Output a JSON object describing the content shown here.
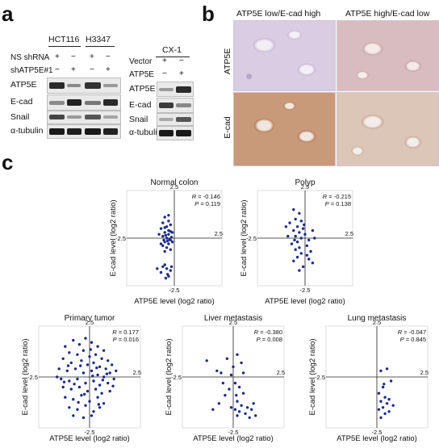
{
  "panels": {
    "a": "a",
    "b": "b",
    "c": "c"
  },
  "blot_a": {
    "cell_lines_left": [
      "HCT116",
      "H3347"
    ],
    "cell_line_right": "CX-1",
    "left_conditions": [
      {
        "label": "NS shRNA",
        "marks": [
          "+",
          "−",
          "+",
          "−"
        ]
      },
      {
        "label": "shATP5E#1",
        "marks": [
          "−",
          "+",
          "−",
          "+"
        ]
      }
    ],
    "right_conditions": [
      {
        "label": "Vector",
        "marks": [
          "+",
          "−"
        ]
      },
      {
        "label": "ATP5E",
        "marks": [
          "−",
          "+"
        ]
      }
    ],
    "rows": [
      "ATP5E",
      "E-cad",
      "Snail",
      "α-tubulin"
    ]
  },
  "ihc_b": {
    "col_titles": [
      "ATP5E low/E-cad high",
      "ATP5E high/E-cad low"
    ],
    "row_labels": [
      "ATP5E",
      "E-cad"
    ]
  },
  "chart_data": [
    {
      "type": "scatter",
      "title": "Normal colon",
      "xlabel": "ATP5E level (log2 ratio)",
      "ylabel": "E-cad level (log2 ratio)",
      "xlim": [
        -2.5,
        2.5
      ],
      "ylim": [
        -2.5,
        2.5
      ],
      "ticks": [
        "2.5",
        "-2.5",
        "2.5",
        "-2.5"
      ],
      "stats": {
        "R": "-0.146",
        "P": "0.119"
      },
      "points": [
        [
          -0.5,
          1.1
        ],
        [
          -0.3,
          1.2
        ],
        [
          -0.6,
          0.8
        ],
        [
          -0.4,
          0.6
        ],
        [
          -0.2,
          0.7
        ],
        [
          -0.7,
          0.5
        ],
        [
          -0.5,
          0.3
        ],
        [
          -0.3,
          0.2
        ],
        [
          -0.6,
          0.1
        ],
        [
          -0.4,
          0.0
        ],
        [
          -0.2,
          -0.1
        ],
        [
          -0.5,
          -0.2
        ],
        [
          -0.3,
          -0.3
        ],
        [
          -0.1,
          -0.2
        ],
        [
          -0.6,
          -0.4
        ],
        [
          -0.4,
          -0.5
        ],
        [
          -0.2,
          -0.6
        ],
        [
          -0.5,
          -0.7
        ],
        [
          -0.3,
          0.4
        ],
        [
          -0.8,
          0.2
        ],
        [
          -0.1,
          0.3
        ],
        [
          -0.45,
          0.15
        ],
        [
          -0.25,
          -0.05
        ],
        [
          -0.55,
          -0.1
        ],
        [
          -0.35,
          -0.15
        ],
        [
          -0.15,
          0.05
        ],
        [
          -0.7,
          -0.3
        ],
        [
          -0.6,
          -1.5
        ],
        [
          -0.4,
          -1.6
        ],
        [
          -0.2,
          -1.7
        ],
        [
          -0.5,
          -1.4
        ],
        [
          -0.3,
          -2.0
        ],
        [
          -0.7,
          -1.8
        ],
        [
          -0.35,
          -1.9
        ],
        [
          -0.15,
          -1.5
        ],
        [
          -0.45,
          -2.1
        ],
        [
          -0.9,
          -1.6
        ],
        [
          -0.3,
          0.9
        ],
        [
          -0.5,
          0.55
        ],
        [
          -0.2,
          0.35
        ]
      ]
    },
    {
      "type": "scatter",
      "title": "Polyp",
      "xlabel": "ATP5E level (log2 ratio)",
      "ylabel": "E-cad level (log2 ratio)",
      "xlim": [
        -2.5,
        2.5
      ],
      "ylim": [
        -2.5,
        2.5
      ],
      "ticks": [
        "2.5",
        "-2.5",
        "2.5",
        "-2.5"
      ],
      "stats": {
        "R": "-0.215",
        "P": "0.138"
      },
      "points": [
        [
          -0.6,
          1.5
        ],
        [
          -0.3,
          1.3
        ],
        [
          -0.5,
          1.0
        ],
        [
          -0.2,
          0.9
        ],
        [
          -0.8,
          0.8
        ],
        [
          -0.4,
          0.6
        ],
        [
          -0.1,
          0.5
        ],
        [
          -0.6,
          0.4
        ],
        [
          -0.3,
          0.3
        ],
        [
          0.0,
          0.2
        ],
        [
          -0.5,
          0.1
        ],
        [
          -0.2,
          0.0
        ],
        [
          0.2,
          -0.1
        ],
        [
          -0.4,
          -0.2
        ],
        [
          -0.7,
          -0.3
        ],
        [
          0.1,
          -0.4
        ],
        [
          -0.3,
          -0.5
        ],
        [
          -0.5,
          -0.6
        ],
        [
          0.3,
          -0.7
        ],
        [
          -0.2,
          -0.8
        ],
        [
          -0.4,
          -1.0
        ],
        [
          -0.6,
          -1.2
        ],
        [
          0.2,
          -1.1
        ],
        [
          -0.1,
          -1.5
        ],
        [
          -0.3,
          -1.7
        ],
        [
          0.4,
          -1.3
        ],
        [
          0.1,
          -0.9
        ],
        [
          -0.9,
          0.1
        ],
        [
          -1.0,
          0.6
        ],
        [
          0.4,
          0.4
        ],
        [
          0.5,
          0.0
        ],
        [
          -0.05,
          0.7
        ],
        [
          -0.55,
          -0.1
        ]
      ]
    },
    {
      "type": "scatter",
      "title": "Primary tumor",
      "xlabel": "ATP5E level (log2 ratio)",
      "ylabel": "E-cad level (log2 ratio)",
      "xlim": [
        -2.5,
        2.5
      ],
      "ylim": [
        -2.5,
        2.5
      ],
      "ticks": [
        "2.5",
        "-2.5",
        "2.5",
        "-2.5"
      ],
      "stats": {
        "R": "0.177",
        "P": "0.016"
      },
      "points": [
        [
          -1.2,
          1.5
        ],
        [
          -0.8,
          1.8
        ],
        [
          -0.5,
          1.6
        ],
        [
          -0.2,
          1.9
        ],
        [
          0.1,
          1.7
        ],
        [
          0.4,
          1.5
        ],
        [
          0.7,
          1.3
        ],
        [
          -1.0,
          1.2
        ],
        [
          -0.6,
          1.1
        ],
        [
          -0.3,
          1.3
        ],
        [
          0.0,
          1.0
        ],
        [
          0.3,
          1.1
        ],
        [
          0.6,
          0.9
        ],
        [
          0.9,
          0.8
        ],
        [
          -1.3,
          0.9
        ],
        [
          -0.9,
          0.7
        ],
        [
          -0.4,
          0.8
        ],
        [
          -0.1,
          0.6
        ],
        [
          0.2,
          0.7
        ],
        [
          0.5,
          0.5
        ],
        [
          0.8,
          0.4
        ],
        [
          1.1,
          0.6
        ],
        [
          -1.5,
          0.4
        ],
        [
          -1.1,
          0.3
        ],
        [
          -0.7,
          0.4
        ],
        [
          -0.3,
          0.2
        ],
        [
          0.1,
          0.3
        ],
        [
          0.4,
          0.1
        ],
        [
          0.7,
          0.0
        ],
        [
          1.0,
          0.2
        ],
        [
          -1.4,
          -0.1
        ],
        [
          -1.0,
          -0.2
        ],
        [
          -0.6,
          -0.1
        ],
        [
          -0.2,
          -0.3
        ],
        [
          0.2,
          -0.2
        ],
        [
          0.5,
          -0.4
        ],
        [
          0.9,
          -0.3
        ],
        [
          1.2,
          -0.1
        ],
        [
          -1.3,
          -0.5
        ],
        [
          -0.9,
          -0.6
        ],
        [
          -0.5,
          -0.5
        ],
        [
          -0.1,
          -0.7
        ],
        [
          0.3,
          -0.6
        ],
        [
          0.6,
          -0.8
        ],
        [
          1.0,
          -0.7
        ],
        [
          -1.2,
          -1.0
        ],
        [
          -0.8,
          -1.1
        ],
        [
          -0.4,
          -0.9
        ],
        [
          0.0,
          -1.2
        ],
        [
          0.4,
          -1.0
        ],
        [
          0.7,
          -1.3
        ],
        [
          -1.0,
          -1.5
        ],
        [
          -0.6,
          -1.6
        ],
        [
          -0.2,
          -1.4
        ],
        [
          0.2,
          -1.7
        ],
        [
          0.5,
          -1.5
        ],
        [
          -0.8,
          -1.9
        ],
        [
          -0.3,
          -2.0
        ],
        [
          0.1,
          -1.9
        ],
        [
          -1.6,
          0.0
        ],
        [
          1.3,
          0.3
        ],
        [
          -0.45,
          0.55
        ],
        [
          0.15,
          0.05
        ],
        [
          0.35,
          0.45
        ],
        [
          -0.75,
          -0.35
        ],
        [
          0.65,
          -0.15
        ],
        [
          -0.25,
          -0.85
        ],
        [
          0.85,
          0.15
        ],
        [
          -1.05,
          0.55
        ],
        [
          0.05,
          1.35
        ],
        [
          -0.55,
          -1.25
        ],
        [
          0.45,
          -1.35
        ],
        [
          -1.25,
          -0.25
        ],
        [
          1.15,
          -0.45
        ]
      ]
    },
    {
      "type": "scatter",
      "title": "Liver metastasis",
      "xlabel": "ATP5E level (log2 ratio)",
      "ylabel": "E-cad level (log2 ratio)",
      "xlim": [
        -2.5,
        2.5
      ],
      "ylim": [
        -2.5,
        2.5
      ],
      "ticks": [
        "2.5",
        "-2.5",
        "2.5",
        "-2.5"
      ],
      "stats": {
        "R": "-0.380",
        "P": "0.008"
      },
      "points": [
        [
          -1.3,
          0.8
        ],
        [
          -0.8,
          0.3
        ],
        [
          -0.6,
          0.2
        ],
        [
          -0.3,
          0.9
        ],
        [
          0.2,
          1.1
        ],
        [
          0.4,
          0.7
        ],
        [
          -0.1,
          0.1
        ],
        [
          0.1,
          -0.3
        ],
        [
          0.3,
          -0.5
        ],
        [
          -0.2,
          -0.6
        ],
        [
          0.5,
          -0.8
        ],
        [
          0.2,
          -1.2
        ],
        [
          0.4,
          -1.4
        ],
        [
          0.7,
          -1.5
        ],
        [
          0.1,
          -1.6
        ],
        [
          0.3,
          -1.7
        ],
        [
          0.6,
          -1.8
        ],
        [
          0.9,
          -1.6
        ],
        [
          0.8,
          -2.0
        ],
        [
          -0.1,
          -1.5
        ],
        [
          0.2,
          -1.9
        ],
        [
          -0.4,
          -0.9
        ],
        [
          -0.7,
          -1.3
        ],
        [
          -1.0,
          -1.6
        ],
        [
          1.1,
          -1.9
        ],
        [
          0.5,
          0.2
        ],
        [
          -0.5,
          -0.3
        ],
        [
          0.0,
          0.5
        ],
        [
          1.0,
          -1.3
        ],
        [
          0.15,
          -0.9
        ]
      ]
    },
    {
      "type": "scatter",
      "title": "Lung metastasis",
      "xlabel": "ATP5E level (log2 ratio)",
      "ylabel": "E-cad level (log2 ratio)",
      "xlim": [
        -2.5,
        2.5
      ],
      "ylim": [
        -2.5,
        2.5
      ],
      "ticks": [
        "2.5",
        "-2.5",
        "2.5",
        "-2.5"
      ],
      "stats": {
        "R": "-0.047",
        "P": "0.845"
      },
      "points": [
        [
          0.2,
          0.3
        ],
        [
          0.5,
          0.4
        ],
        [
          0.7,
          -0.2
        ],
        [
          0.3,
          -0.5
        ],
        [
          0.1,
          -0.8
        ],
        [
          0.4,
          -1.0
        ],
        [
          0.6,
          -1.1
        ],
        [
          0.2,
          -1.2
        ],
        [
          0.5,
          -1.3
        ],
        [
          0.3,
          -1.5
        ],
        [
          0.1,
          -1.6
        ],
        [
          0.6,
          -1.7
        ],
        [
          0.4,
          -1.8
        ],
        [
          0.2,
          -2.0
        ],
        [
          0.8,
          -1.4
        ],
        [
          0.35,
          -0.35
        ]
      ]
    }
  ]
}
